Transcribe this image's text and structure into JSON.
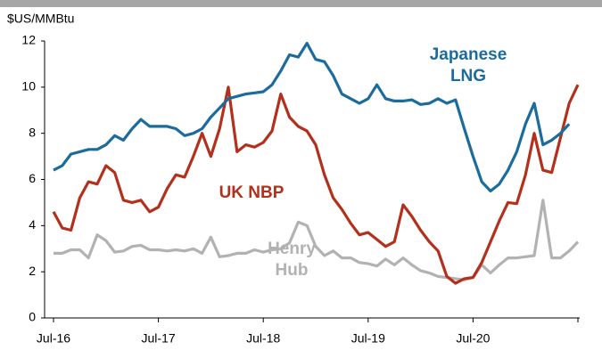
{
  "chart_data": {
    "type": "line",
    "ylabel": "$US/MMBtu",
    "categories": [
      "Jul-16",
      null,
      null,
      null,
      null,
      null,
      null,
      null,
      null,
      null,
      null,
      null,
      "Jul-17",
      null,
      null,
      null,
      null,
      null,
      null,
      null,
      null,
      null,
      null,
      null,
      "Jul-18",
      null,
      null,
      null,
      null,
      null,
      null,
      null,
      null,
      null,
      null,
      null,
      "Jul-19",
      null,
      null,
      null,
      null,
      null,
      null,
      null,
      null,
      null,
      null,
      null,
      "Jul-20",
      null,
      null,
      null,
      null,
      null,
      null,
      null,
      null,
      null,
      null,
      null,
      null
    ],
    "ylim": [
      0,
      12
    ],
    "yticks": [
      0,
      2,
      4,
      6,
      8,
      10,
      12
    ],
    "grid": false,
    "series": [
      {
        "name": "Japanese LNG",
        "color": "#1b6c9c",
        "values": [
          6.4,
          6.6,
          7.1,
          7.2,
          7.3,
          7.3,
          7.5,
          7.9,
          7.7,
          8.2,
          8.6,
          8.3,
          8.3,
          8.3,
          8.2,
          7.9,
          8.0,
          8.2,
          8.7,
          9.1,
          9.5,
          9.6,
          9.7,
          9.75,
          9.8,
          10.1,
          10.7,
          11.4,
          11.3,
          11.9,
          11.2,
          11.1,
          10.5,
          9.7,
          9.5,
          9.3,
          9.5,
          10.1,
          9.5,
          9.4,
          9.4,
          9.45,
          9.25,
          9.3,
          9.5,
          9.3,
          9.45,
          8.2,
          7.0,
          5.9,
          5.5,
          5.8,
          6.4,
          7.2,
          8.4,
          9.3,
          7.5,
          7.7,
          8.0,
          8.4,
          null
        ]
      },
      {
        "name": "UK NBP",
        "color": "#b3301c",
        "values": [
          4.6,
          3.9,
          3.8,
          5.2,
          5.9,
          5.8,
          6.6,
          6.3,
          5.1,
          5.0,
          5.1,
          4.6,
          4.8,
          5.6,
          6.2,
          6.1,
          7.0,
          8.0,
          7.0,
          8.2,
          10.0,
          7.2,
          7.5,
          7.4,
          7.6,
          8.1,
          9.7,
          8.7,
          8.3,
          8.1,
          7.5,
          6.2,
          5.2,
          4.7,
          4.1,
          3.6,
          3.7,
          3.4,
          3.1,
          3.3,
          4.9,
          4.4,
          3.8,
          3.3,
          2.9,
          1.8,
          1.5,
          1.7,
          1.75,
          2.4,
          3.3,
          4.2,
          5.0,
          4.95,
          6.2,
          8.0,
          6.4,
          6.3,
          7.8,
          9.3,
          10.1
        ]
      },
      {
        "name": "Henry Hub",
        "color": "#b2b2b2",
        "values": [
          2.8,
          2.8,
          2.95,
          2.95,
          2.6,
          3.6,
          3.35,
          2.85,
          2.9,
          3.1,
          3.15,
          2.95,
          2.95,
          2.9,
          2.95,
          2.9,
          3.0,
          2.8,
          3.5,
          2.65,
          2.7,
          2.8,
          2.8,
          2.95,
          2.85,
          2.95,
          3.0,
          3.25,
          4.15,
          4.0,
          3.1,
          2.7,
          2.9,
          2.6,
          2.6,
          2.4,
          2.35,
          2.25,
          2.55,
          2.3,
          2.6,
          2.3,
          2.05,
          1.95,
          1.8,
          1.75,
          1.7,
          1.65,
          1.75,
          2.3,
          1.95,
          2.3,
          2.6,
          2.6,
          2.65,
          2.7,
          5.1,
          2.6,
          2.6,
          2.9,
          3.3
        ]
      }
    ]
  }
}
